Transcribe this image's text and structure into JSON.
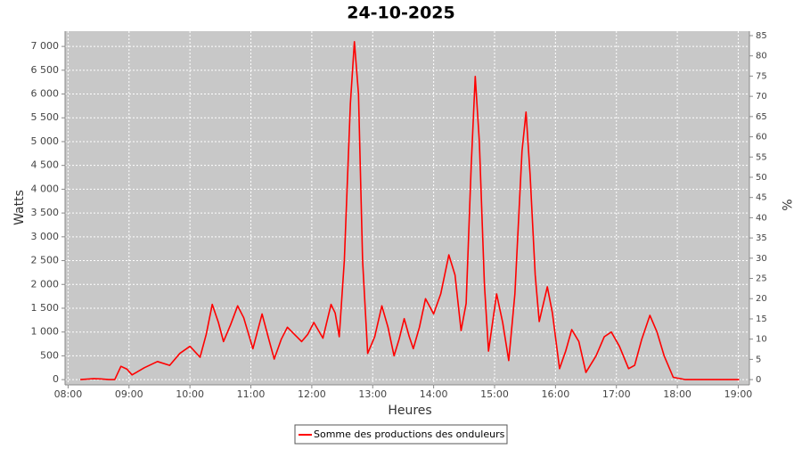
{
  "chart_data": {
    "type": "line",
    "title": "24-10-2025",
    "x_label": "Heures",
    "y_label": "Watts",
    "y2_label": "%",
    "x": [
      "08:12",
      "08:25",
      "08:32",
      "08:40",
      "08:46",
      "08:52",
      "08:58",
      "09:03",
      "09:15",
      "09:28",
      "09:40",
      "09:50",
      "10:00",
      "10:10",
      "10:16",
      "10:22",
      "10:28",
      "10:33",
      "10:40",
      "10:47",
      "10:53",
      "11:02",
      "11:11",
      "11:17",
      "11:23",
      "11:30",
      "11:36",
      "11:43",
      "11:50",
      "11:56",
      "12:02",
      "12:11",
      "12:19",
      "12:23",
      "12:27",
      "12:32",
      "12:38",
      "12:42",
      "12:46",
      "12:50",
      "12:55",
      "13:02",
      "13:09",
      "13:15",
      "13:21",
      "13:26",
      "13:31",
      "13:36",
      "13:40",
      "13:46",
      "13:52",
      "14:00",
      "14:07",
      "14:15",
      "14:21",
      "14:27",
      "14:32",
      "14:37",
      "14:41",
      "14:45",
      "14:50",
      "14:54",
      "15:02",
      "15:08",
      "15:14",
      "15:20",
      "15:27",
      "15:31",
      "15:35",
      "15:40",
      "15:44",
      "15:52",
      "15:57",
      "16:04",
      "16:10",
      "16:16",
      "16:23",
      "16:30",
      "16:40",
      "16:48",
      "16:55",
      "17:03",
      "17:12",
      "17:18",
      "17:25",
      "17:33",
      "17:40",
      "17:47",
      "17:56",
      "18:08",
      "19:01"
    ],
    "series": [
      {
        "name": "Somme des productions des onduleurs",
        "color": "#ff0000",
        "values": [
          0,
          20,
          15,
          0,
          0,
          280,
          220,
          100,
          250,
          380,
          300,
          550,
          700,
          470,
          950,
          1580,
          1200,
          800,
          1150,
          1550,
          1300,
          650,
          1380,
          900,
          430,
          850,
          1100,
          950,
          800,
          950,
          1200,
          870,
          1580,
          1400,
          900,
          2500,
          5800,
          7100,
          6000,
          2500,
          550,
          900,
          1550,
          1100,
          500,
          850,
          1280,
          900,
          650,
          1100,
          1700,
          1380,
          1800,
          2620,
          2200,
          1030,
          1600,
          4500,
          6370,
          5000,
          2000,
          600,
          1800,
          1200,
          400,
          1800,
          4800,
          5620,
          4300,
          2200,
          1220,
          1950,
          1400,
          230,
          600,
          1050,
          800,
          150,
          500,
          900,
          1000,
          700,
          230,
          300,
          850,
          1350,
          1000,
          500,
          50,
          0,
          0
        ]
      }
    ],
    "xlim": [
      "07:57",
      "19:11"
    ],
    "xticks": [
      "08:00",
      "09:00",
      "10:00",
      "11:00",
      "12:00",
      "13:00",
      "14:00",
      "15:00",
      "16:00",
      "17:00",
      "18:00",
      "19:00"
    ],
    "ylim": [
      -110,
      7320
    ],
    "yticks": [
      0,
      500,
      {
        "value": 1000,
        "label": "1 000"
      },
      {
        "value": 1500,
        "label": "1 500"
      },
      {
        "value": 2000,
        "label": "2 000"
      },
      {
        "value": 2500,
        "label": "2 500"
      },
      {
        "value": 3000,
        "label": "3 000"
      },
      {
        "value": 3500,
        "label": "3 500"
      },
      {
        "value": 4000,
        "label": "4 000"
      },
      {
        "value": 4500,
        "label": "4 500"
      },
      {
        "value": 5000,
        "label": "5 000"
      },
      {
        "value": 5500,
        "label": "5 500"
      },
      {
        "value": 6000,
        "label": "6 000"
      },
      {
        "value": 6500,
        "label": "6 500"
      },
      {
        "value": 7000,
        "label": "7 000"
      }
    ],
    "y2lim": [
      -1.3,
      86.1
    ],
    "y2ticks": [
      0,
      5,
      10,
      15,
      20,
      25,
      30,
      35,
      40,
      45,
      50,
      55,
      60,
      65,
      70,
      75,
      80,
      85
    ],
    "grid": true,
    "legend": "bottom"
  }
}
